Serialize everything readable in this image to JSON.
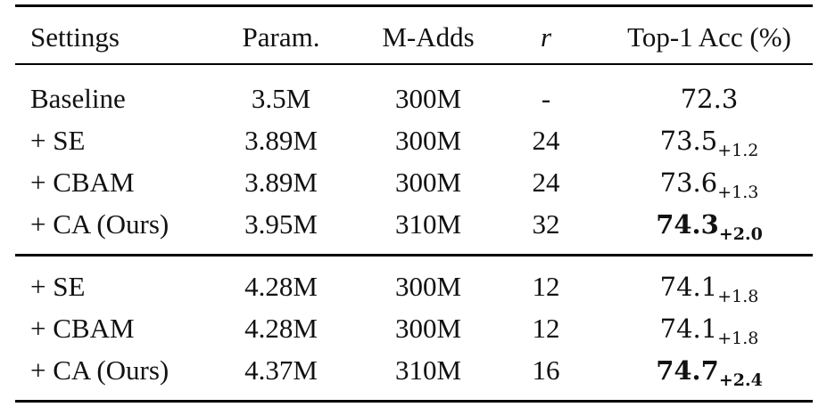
{
  "header": {
    "settings": "Settings",
    "param": "Param.",
    "madds": "M-Adds",
    "r": "r",
    "acc": "Top-1 Acc (%)"
  },
  "group1": [
    {
      "setting": "Baseline",
      "param": "3.5M",
      "madds": "300M",
      "r": "-",
      "acc": "72.3",
      "delta": ""
    },
    {
      "setting": "+ SE",
      "param": "3.89M",
      "madds": "300M",
      "r": "24",
      "acc": "73.5",
      "delta": "+1.2"
    },
    {
      "setting": "+ CBAM",
      "param": "3.89M",
      "madds": "300M",
      "r": "24",
      "acc": "73.6",
      "delta": "+1.3"
    },
    {
      "setting": "+ CA (Ours)",
      "param": "3.95M",
      "madds": "310M",
      "r": "32",
      "acc": "74.3",
      "delta": "+2.0"
    }
  ],
  "group2": [
    {
      "setting": "+ SE",
      "param": "4.28M",
      "madds": "300M",
      "r": "12",
      "acc": "74.1",
      "delta": "+1.8"
    },
    {
      "setting": "+ CBAM",
      "param": "4.28M",
      "madds": "300M",
      "r": "12",
      "acc": "74.1",
      "delta": "+1.8"
    },
    {
      "setting": "+ CA (Ours)",
      "param": "4.37M",
      "madds": "310M",
      "r": "16",
      "acc": "74.7",
      "delta": "+2.4"
    }
  ]
}
